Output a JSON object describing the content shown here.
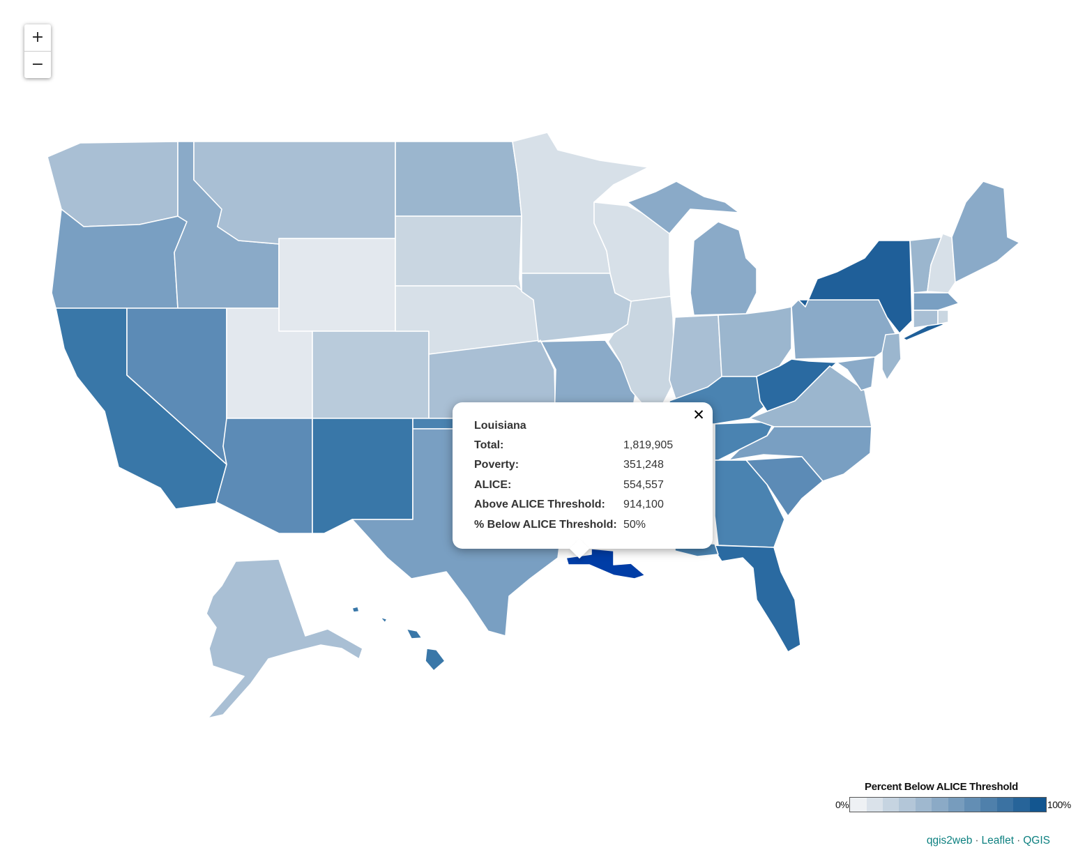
{
  "map": {
    "zoom_in_label": "+",
    "zoom_out_label": "−",
    "selected_state": "Louisiana",
    "colors": {
      "c0": "#e3e8ee",
      "c1": "#d7e0e8",
      "c2": "#c9d6e1",
      "c3": "#b9cbdb",
      "c4": "#a9bfd4",
      "c5": "#9bb6ce",
      "c6": "#8aaac8",
      "c7": "#799fc2",
      "c8": "#5c8bb6",
      "c9": "#4a83b1",
      "c10": "#3977a8",
      "c11": "#2a6aa1",
      "c12": "#1f5f99",
      "highlight": "#003da6"
    }
  },
  "popup": {
    "close_label": "✕",
    "title": "Louisiana",
    "rows": [
      {
        "label": "Total:",
        "value": "1,819,905"
      },
      {
        "label": "Poverty:",
        "value": "351,248"
      },
      {
        "label": "ALICE:",
        "value": "554,557"
      },
      {
        "label": "Above ALICE Threshold:",
        "value": "914,100"
      },
      {
        "label": "% Below ALICE Threshold:",
        "value": "50%"
      }
    ]
  },
  "legend": {
    "title": "Percent Below ALICE Threshold",
    "min_label": "0%",
    "max_label": "100%",
    "swatches": [
      "#eef1f4",
      "#dae2ea",
      "#c6d4e1",
      "#b3c6d8",
      "#9fb8cf",
      "#8baac6",
      "#779cbd",
      "#638eb4",
      "#4f80ab",
      "#3b72a2",
      "#276499",
      "#135690"
    ]
  },
  "attribution": {
    "links": [
      "qgis2web",
      "Leaflet",
      "QGIS"
    ],
    "separator": "·"
  }
}
